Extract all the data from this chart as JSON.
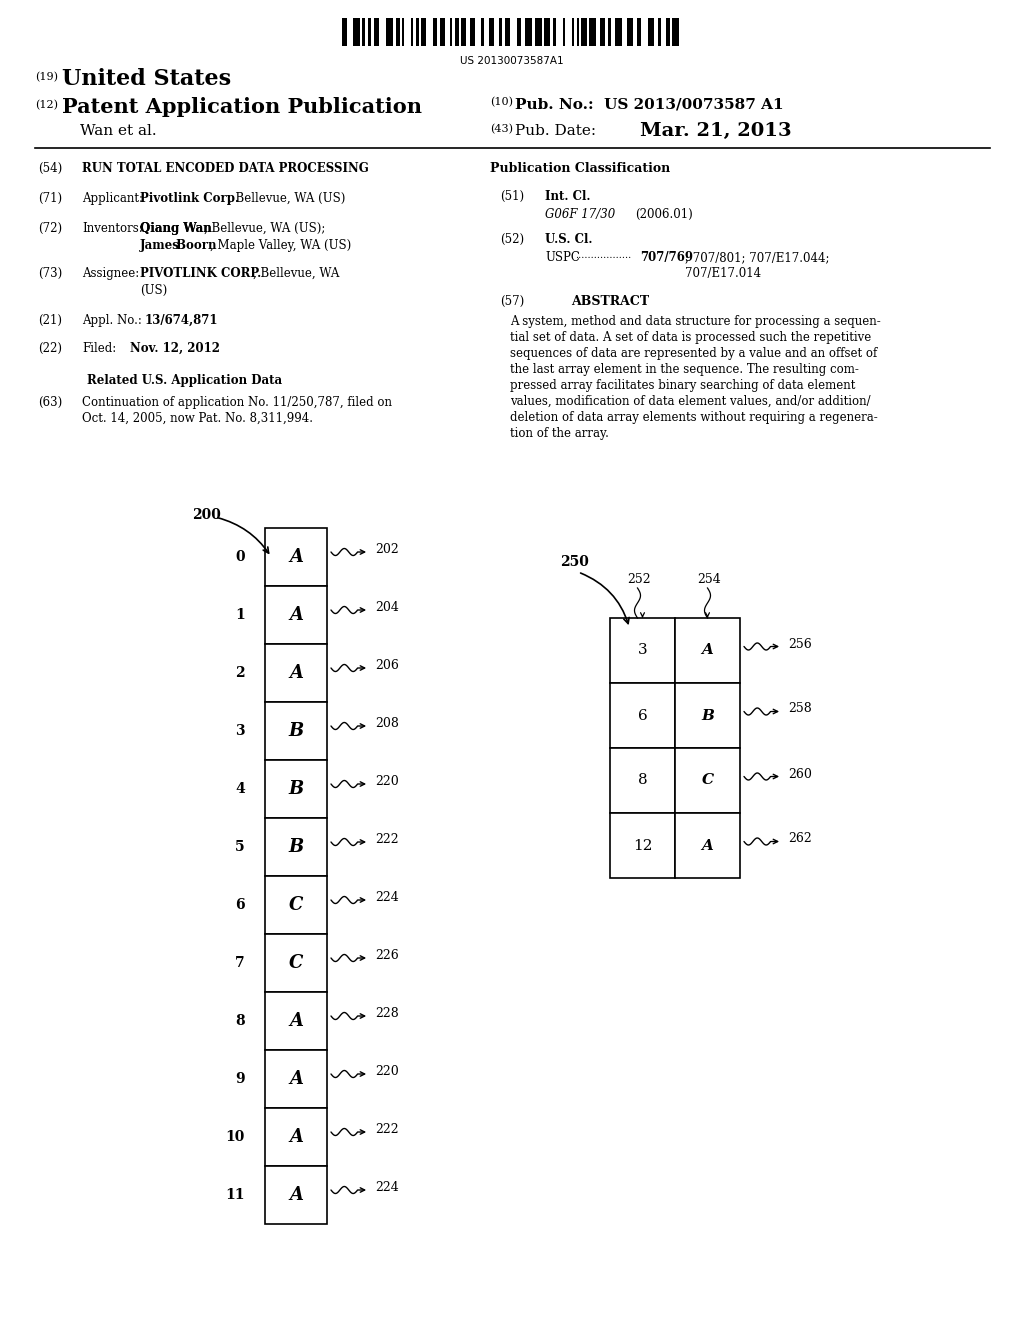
{
  "bg_color": "#ffffff",
  "barcode_text": "US 20130073587A1",
  "diagram1": {
    "label": "200",
    "rows": [
      {
        "index": 0,
        "value": "A",
        "ref": "202"
      },
      {
        "index": 1,
        "value": "A",
        "ref": "204"
      },
      {
        "index": 2,
        "value": "A",
        "ref": "206"
      },
      {
        "index": 3,
        "value": "B",
        "ref": "208"
      },
      {
        "index": 4,
        "value": "B",
        "ref": "220"
      },
      {
        "index": 5,
        "value": "B",
        "ref": "222"
      },
      {
        "index": 6,
        "value": "C",
        "ref": "224"
      },
      {
        "index": 7,
        "value": "C",
        "ref": "226"
      },
      {
        "index": 8,
        "value": "A",
        "ref": "228"
      },
      {
        "index": 9,
        "value": "A",
        "ref": "220"
      },
      {
        "index": 10,
        "value": "A",
        "ref": "222"
      },
      {
        "index": 11,
        "value": "A",
        "ref": "224"
      }
    ]
  },
  "diagram2": {
    "label": "250",
    "col1_label": "252",
    "col2_label": "254",
    "rows": [
      {
        "col1": "3",
        "col2": "A",
        "ref": "256"
      },
      {
        "col1": "6",
        "col2": "B",
        "ref": "258"
      },
      {
        "col1": "8",
        "col2": "C",
        "ref": "260"
      },
      {
        "col1": "12",
        "col2": "A",
        "ref": "262"
      }
    ]
  }
}
